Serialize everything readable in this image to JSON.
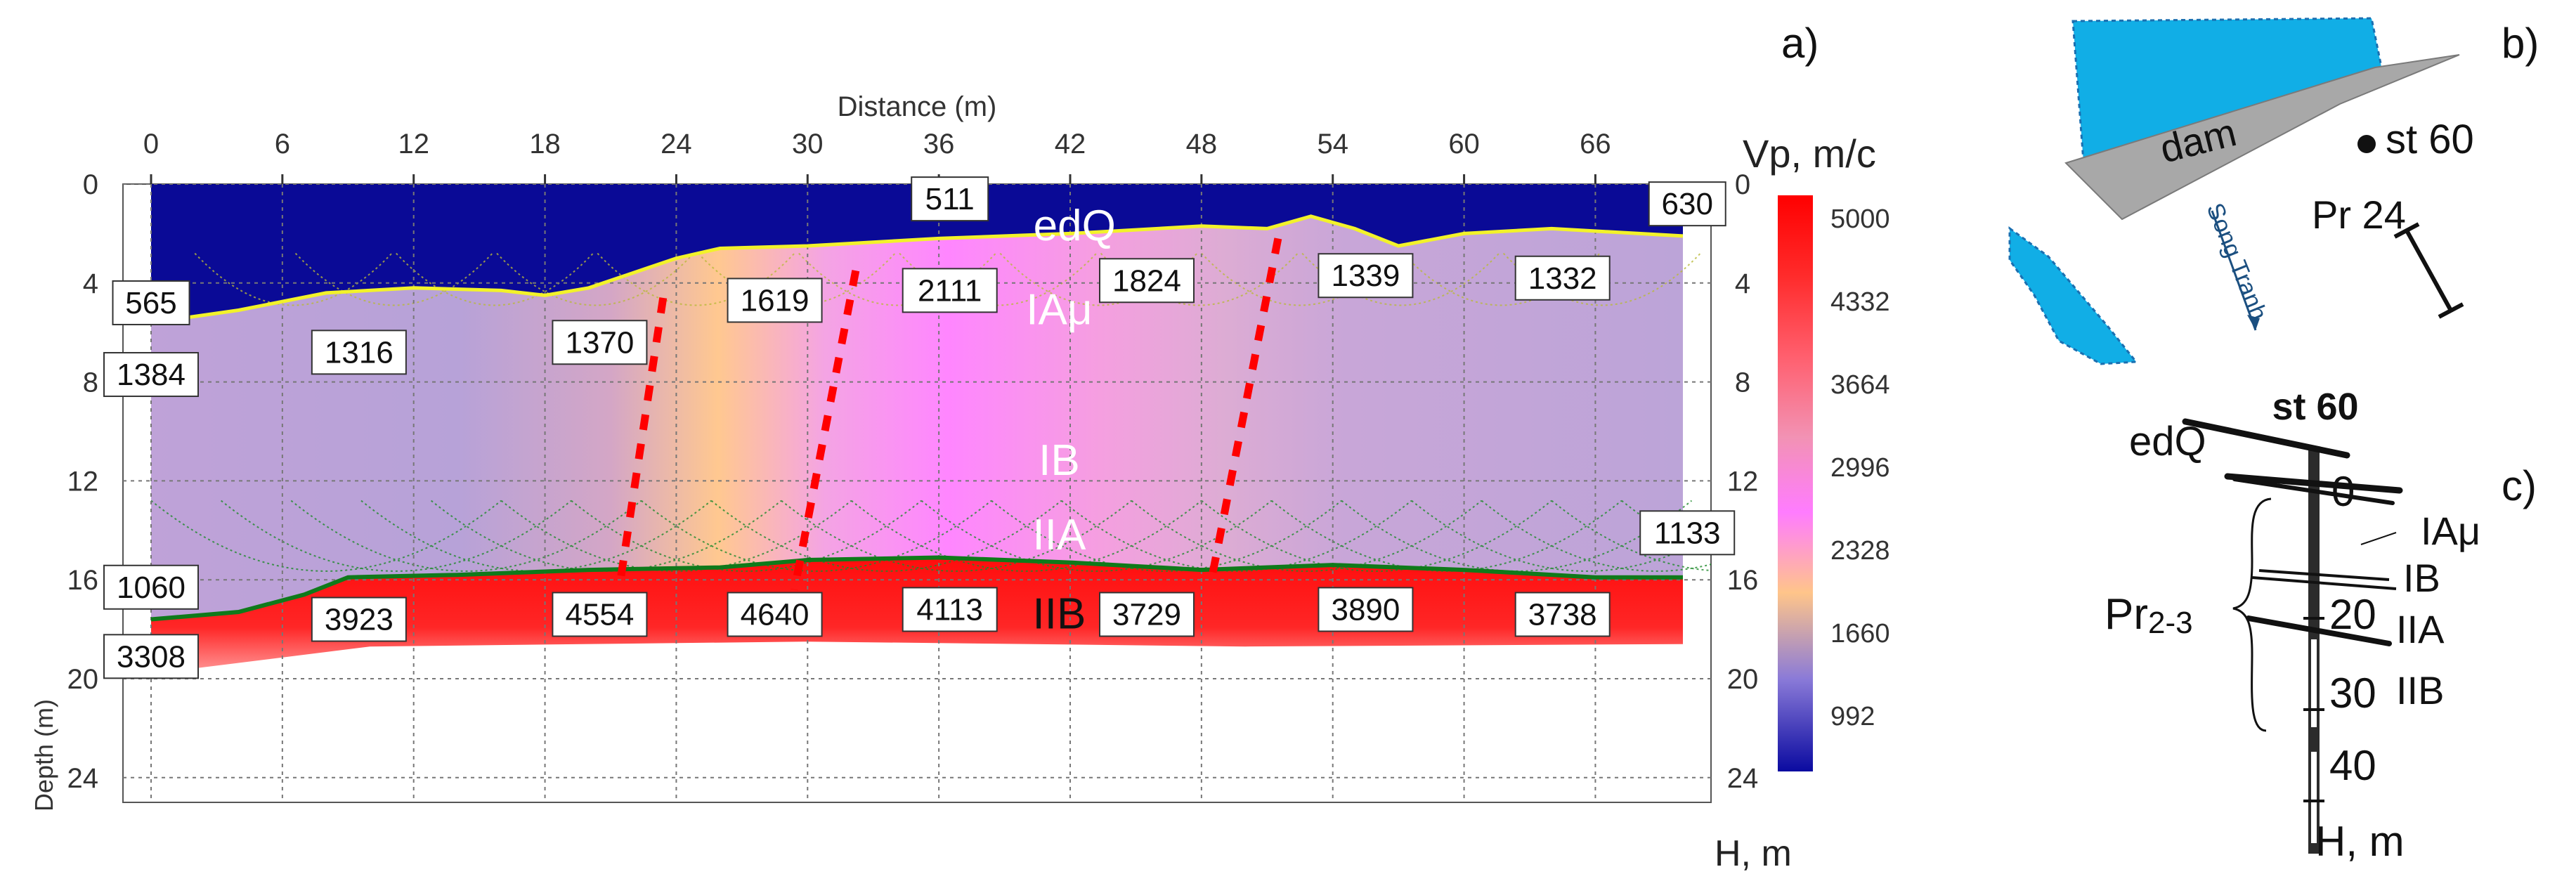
{
  "panel_labels": {
    "a": "a)",
    "b": "b)",
    "c": "c)"
  },
  "chart_data": [
    {
      "type": "heatmap",
      "title": "",
      "xlabel": "Distance (m)",
      "ylabel": "Depth (m)",
      "right_axis_label": "H, m",
      "xlim": [
        0,
        70
      ],
      "ylim": [
        0,
        25
      ],
      "x_ticks": [
        "0",
        "6",
        "12",
        "18",
        "24",
        "30",
        "36",
        "42",
        "48",
        "54",
        "60",
        "66"
      ],
      "y_ticks": [
        "0",
        "4",
        "8",
        "12",
        "16",
        "20",
        "24"
      ],
      "grid": true,
      "colorbar": {
        "title": "Vp, m/c",
        "labels": [
          "5000",
          "4332",
          "3664",
          "2996",
          "2328",
          "1660",
          "992"
        ],
        "colors": [
          "#ff0000",
          "#ff3a3a",
          "#ff7d8a",
          "#f3a0c9",
          "#ff7dff",
          "#ffc58a",
          "#7a6ed6",
          "#0a0aa0"
        ]
      },
      "layers": [
        {
          "name": "edQ",
          "color": "#0a0a96"
        },
        {
          "name": "IAμ",
          "color": "#c7a0d8"
        },
        {
          "name": "IB",
          "color": "#c7a0d8"
        },
        {
          "name": "IIA",
          "color": "#c7a0d8"
        },
        {
          "name": "IIB",
          "color": "#ff2020"
        }
      ],
      "velocity_labels": [
        {
          "x": 0,
          "y": 4.8,
          "value": "565"
        },
        {
          "x": 0,
          "y": 7.7,
          "value": "1384"
        },
        {
          "x": 0,
          "y": 16.3,
          "value": "1060"
        },
        {
          "x": 0,
          "y": 19.1,
          "value": "3308"
        },
        {
          "x": 9.5,
          "y": 6.8,
          "value": "1316"
        },
        {
          "x": 9.5,
          "y": 17.6,
          "value": "3923"
        },
        {
          "x": 20.5,
          "y": 6.4,
          "value": "1370"
        },
        {
          "x": 20.5,
          "y": 17.4,
          "value": "4554"
        },
        {
          "x": 28.5,
          "y": 4.7,
          "value": "1619"
        },
        {
          "x": 28.5,
          "y": 17.4,
          "value": "4640"
        },
        {
          "x": 36.5,
          "y": 0.6,
          "value": "511"
        },
        {
          "x": 36.5,
          "y": 4.3,
          "value": "2111"
        },
        {
          "x": 36.5,
          "y": 17.2,
          "value": "4113"
        },
        {
          "x": 45.5,
          "y": 3.9,
          "value": "1824"
        },
        {
          "x": 45.5,
          "y": 17.4,
          "value": "3729"
        },
        {
          "x": 55.5,
          "y": 3.7,
          "value": "1339"
        },
        {
          "x": 55.5,
          "y": 17.2,
          "value": "3890"
        },
        {
          "x": 64.5,
          "y": 3.8,
          "value": "1332"
        },
        {
          "x": 64.5,
          "y": 17.4,
          "value": "3738"
        },
        {
          "x": 70.2,
          "y": 0.8,
          "value": "630"
        },
        {
          "x": 70.2,
          "y": 14.1,
          "value": "1133"
        }
      ],
      "edq_boundary": [
        [
          0,
          5.6
        ],
        [
          4,
          5.1
        ],
        [
          8,
          4.4
        ],
        [
          12,
          4.2
        ],
        [
          16,
          4.3
        ],
        [
          18,
          4.5
        ],
        [
          20,
          4.2
        ],
        [
          22,
          3.6
        ],
        [
          24,
          3.0
        ],
        [
          26,
          2.6
        ],
        [
          30,
          2.5
        ],
        [
          36,
          2.2
        ],
        [
          42,
          2.0
        ],
        [
          48,
          1.7
        ],
        [
          51,
          1.8
        ],
        [
          53,
          1.3
        ],
        [
          55,
          1.8
        ],
        [
          57,
          2.5
        ],
        [
          60,
          2.0
        ],
        [
          64,
          1.8
        ],
        [
          68,
          2.0
        ],
        [
          70,
          2.1
        ]
      ],
      "refractor_boundary": [
        [
          0,
          17.6
        ],
        [
          4,
          17.3
        ],
        [
          7,
          16.6
        ],
        [
          9,
          15.9
        ],
        [
          14,
          15.8
        ],
        [
          20,
          15.6
        ],
        [
          26,
          15.5
        ],
        [
          30,
          15.2
        ],
        [
          36,
          15.1
        ],
        [
          42,
          15.3
        ],
        [
          48,
          15.6
        ],
        [
          54,
          15.4
        ],
        [
          60,
          15.6
        ],
        [
          66,
          15.9
        ],
        [
          70,
          15.9
        ]
      ],
      "red_base": [
        [
          0,
          19.8
        ],
        [
          10,
          18.7
        ],
        [
          30,
          18.5
        ],
        [
          50,
          18.7
        ],
        [
          70,
          18.6
        ]
      ],
      "fault_lines": [
        [
          [
            23.4,
            4.6
          ],
          [
            21.4,
            16.3
          ]
        ],
        [
          [
            32.2,
            3.5
          ],
          [
            29.4,
            16.4
          ]
        ],
        [
          [
            51.5,
            2.2
          ],
          [
            48.5,
            15.8
          ]
        ]
      ]
    }
  ],
  "map_panel": {
    "dam_label": "dam",
    "station_label": "st 60",
    "profile_label": "Pr 24",
    "river_label": "Song Tranh"
  },
  "borehole_panel": {
    "title": "st 60",
    "top_label": "edQ",
    "group_label_main": "Pr",
    "group_label_sub": "2-3",
    "layer_labels": [
      "IAμ",
      "IB",
      "IIA",
      "IIB"
    ],
    "depth_ticks": [
      "0",
      "20",
      "30",
      "40"
    ],
    "depth_unit": "H, m"
  }
}
